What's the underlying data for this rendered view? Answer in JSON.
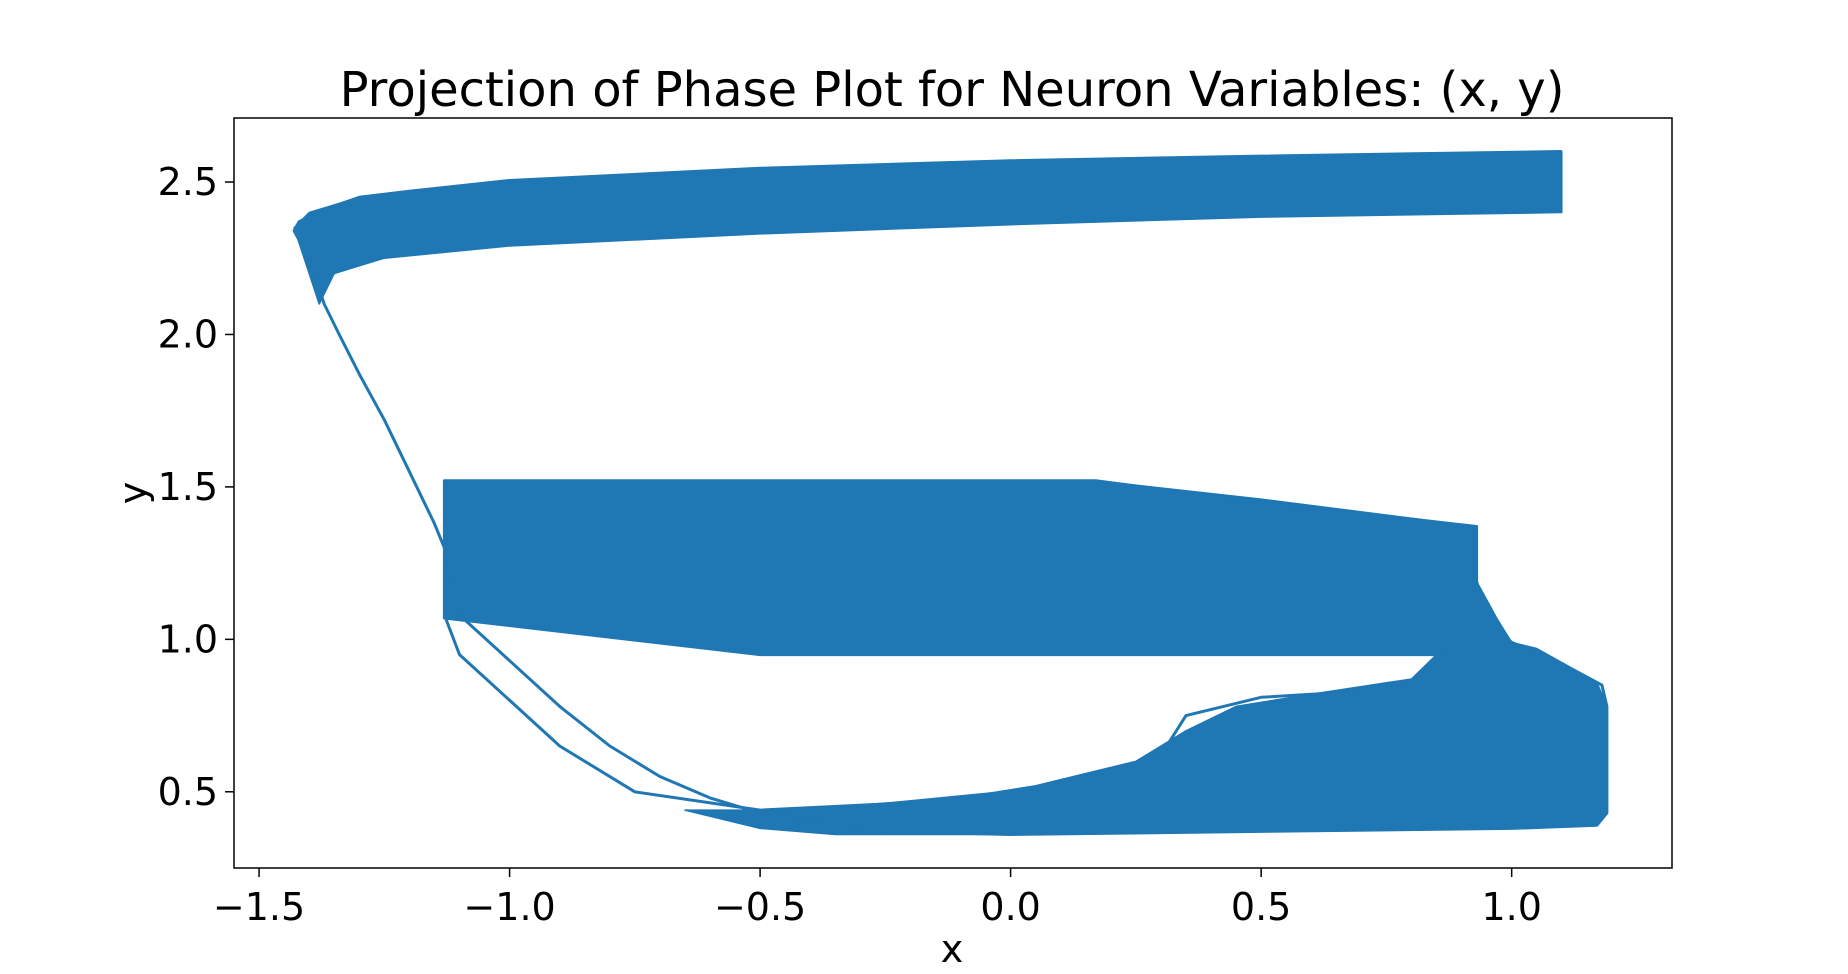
{
  "chart_data": {
    "type": "line",
    "title": "Projection of Phase Plot for Neuron Variables: (x, y)",
    "xlabel": "x",
    "ylabel": "y",
    "xlim": [
      -1.55,
      1.32
    ],
    "ylim": [
      0.25,
      2.71
    ],
    "xticks": [
      -1.5,
      -1.0,
      -0.5,
      0.0,
      0.5,
      1.0
    ],
    "xtick_labels": [
      "−1.5",
      "−1.0",
      "−0.5",
      "0.0",
      "0.5",
      "1.0"
    ],
    "yticks": [
      0.5,
      1.0,
      1.5,
      2.0,
      2.5
    ],
    "ytick_labels": [
      "0.5",
      "1.0",
      "1.5",
      "2.0",
      "2.5"
    ],
    "grid": false,
    "series_color": "#1f77b4",
    "series": [
      {
        "points": [
          [
            1.1,
            2.6
          ],
          [
            0.5,
            2.585
          ],
          [
            0.0,
            2.57
          ],
          [
            -0.5,
            2.545
          ],
          [
            -1.0,
            2.505
          ],
          [
            -1.2,
            2.47
          ],
          [
            -1.3,
            2.45
          ],
          [
            -1.37,
            2.41
          ],
          [
            -1.42,
            2.37
          ],
          [
            -1.43,
            2.34
          ],
          [
            -1.41,
            2.28
          ],
          [
            -1.39,
            2.21
          ],
          [
            -1.38,
            2.15
          ],
          [
            -1.37,
            2.1
          ],
          [
            -1.34,
            2.0
          ],
          [
            -1.3,
            1.87
          ],
          [
            -1.25,
            1.72
          ],
          [
            -1.2,
            1.55
          ],
          [
            -1.15,
            1.38
          ],
          [
            -1.13,
            1.3
          ],
          [
            -1.1,
            1.08
          ],
          [
            -1.0,
            0.93
          ],
          [
            -0.9,
            0.78
          ],
          [
            -0.8,
            0.65
          ],
          [
            -0.7,
            0.55
          ],
          [
            -0.6,
            0.48
          ],
          [
            -0.5,
            0.43
          ],
          [
            -0.25,
            0.37
          ],
          [
            0.0,
            0.36
          ],
          [
            0.5,
            0.37
          ],
          [
            1.0,
            0.38
          ],
          [
            1.17,
            0.39
          ],
          [
            1.19,
            0.43
          ],
          [
            1.19,
            0.78
          ],
          [
            1.18,
            0.85
          ],
          [
            1.1,
            0.92
          ],
          [
            1.0,
            0.99
          ],
          [
            0.95,
            1.06
          ],
          [
            0.93,
            1.19
          ],
          [
            0.93,
            1.37
          ],
          [
            0.5,
            1.45
          ],
          [
            0.17,
            1.52
          ],
          [
            -0.5,
            1.52
          ],
          [
            -1.13,
            1.52
          ],
          [
            -1.13,
            1.5
          ],
          [
            -1.13,
            1.07
          ],
          [
            -0.5,
            0.95
          ],
          [
            0.5,
            0.95
          ],
          [
            0.85,
            0.95
          ],
          [
            0.82,
            0.87
          ],
          [
            0.7,
            0.83
          ],
          [
            0.5,
            0.81
          ],
          [
            0.35,
            0.75
          ],
          [
            0.3,
            0.62
          ],
          [
            0.2,
            0.57
          ],
          [
            0.1,
            0.53
          ],
          [
            0.0,
            0.5
          ],
          [
            -0.25,
            0.46
          ],
          [
            -0.5,
            0.44
          ],
          [
            -0.75,
            0.5
          ],
          [
            -0.9,
            0.65
          ],
          [
            -1.1,
            0.95
          ],
          [
            -1.13,
            1.08
          ]
        ]
      }
    ],
    "bands": [
      {
        "upper": [
          [
            -1.43,
            2.35
          ],
          [
            -1.4,
            2.4
          ],
          [
            -1.3,
            2.45
          ],
          [
            -1.0,
            2.505
          ],
          [
            -0.5,
            2.545
          ],
          [
            0.0,
            2.57
          ],
          [
            0.5,
            2.585
          ],
          [
            1.1,
            2.6
          ]
        ],
        "lower": [
          [
            1.1,
            2.4
          ],
          [
            0.5,
            2.385
          ],
          [
            0.0,
            2.36
          ],
          [
            -0.5,
            2.33
          ],
          [
            -1.0,
            2.29
          ],
          [
            -1.25,
            2.25
          ],
          [
            -1.35,
            2.2
          ],
          [
            -1.38,
            2.1
          ],
          [
            -1.41,
            2.25
          ]
        ]
      },
      {
        "upper": [
          [
            -1.13,
            1.52
          ],
          [
            0.17,
            1.52
          ],
          [
            0.5,
            1.46
          ],
          [
            0.93,
            1.37
          ]
        ],
        "lower": [
          [
            0.93,
            1.19
          ],
          [
            0.97,
            1.07
          ],
          [
            1.0,
            0.99
          ],
          [
            0.85,
            0.95
          ],
          [
            -0.5,
            0.95
          ],
          [
            -1.13,
            1.07
          ]
        ]
      },
      {
        "upper": [
          [
            1.0,
            0.99
          ],
          [
            1.05,
            0.97
          ],
          [
            1.17,
            0.86
          ],
          [
            1.19,
            0.78
          ],
          [
            1.19,
            0.43
          ],
          [
            1.17,
            0.39
          ]
        ],
        "lower": [
          [
            1.0,
            0.38
          ],
          [
            0.0,
            0.36
          ],
          [
            -0.35,
            0.36
          ],
          [
            -0.5,
            0.38
          ],
          [
            -0.65,
            0.44
          ],
          [
            -0.45,
            0.44
          ],
          [
            -0.1,
            0.48
          ],
          [
            0.05,
            0.52
          ],
          [
            0.25,
            0.6
          ],
          [
            0.35,
            0.7
          ],
          [
            0.45,
            0.78
          ],
          [
            0.6,
            0.82
          ],
          [
            0.8,
            0.87
          ],
          [
            0.85,
            0.95
          ],
          [
            0.97,
            1.0
          ]
        ]
      }
    ]
  }
}
